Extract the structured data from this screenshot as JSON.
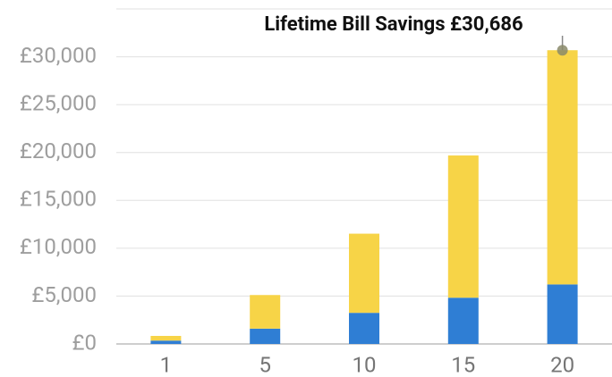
{
  "chart_data": {
    "type": "stacked_bar",
    "annotation": "Lifetime Bill Savings £30,686",
    "categories": [
      "1",
      "5",
      "10",
      "15",
      "20"
    ],
    "series": [
      {
        "color": "#2f7ed4",
        "values": [
          350,
          1600,
          3250,
          4830,
          6220
        ]
      },
      {
        "color": "#f7d447",
        "values": [
          490,
          3510,
          8270,
          14860,
          24466
        ]
      }
    ],
    "ylim": [
      0,
      35000
    ],
    "yticks": [
      {
        "value": 0,
        "label": "£0"
      },
      {
        "value": 5000,
        "label": "£5,000"
      },
      {
        "value": 10000,
        "label": "£10,000"
      },
      {
        "value": 15000,
        "label": "£15,000"
      },
      {
        "value": 20000,
        "label": "£20,000"
      },
      {
        "value": 25000,
        "label": "£25,000"
      },
      {
        "value": 30000,
        "label": "£30,000"
      }
    ],
    "grid": true
  }
}
